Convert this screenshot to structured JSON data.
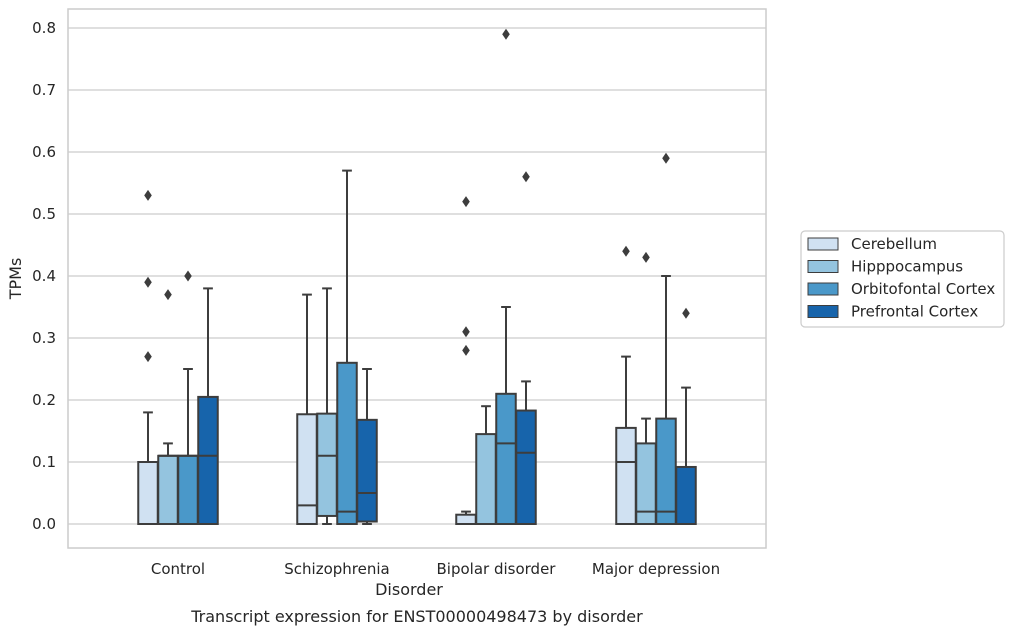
{
  "chart_data": {
    "type": "boxplot",
    "title": "",
    "caption": "Transcript expression for ENST00000498473 by disorder",
    "xlabel": "Disorder",
    "ylabel": "TPMs",
    "ylim": [
      -0.04,
      0.83
    ],
    "yticks": [
      0.0,
      0.1,
      0.2,
      0.3,
      0.4,
      0.5,
      0.6,
      0.7,
      0.8
    ],
    "ytick_labels": [
      "0.0",
      "0.1",
      "0.2",
      "0.3",
      "0.4",
      "0.5",
      "0.6",
      "0.7",
      "0.8"
    ],
    "grid": true,
    "legend_position": "right",
    "categories": [
      "Control",
      "Schizophrenia",
      "Bipolar disorder",
      "Major depression"
    ],
    "series": [
      {
        "name": "Cerebellum",
        "color": "#d0e1f2",
        "boxes": [
          {
            "whislo": 0.0,
            "q1": 0.0,
            "med": 0.0,
            "q3": 0.1,
            "whishi": 0.18,
            "fliers": [
              0.27,
              0.39,
              0.53
            ]
          },
          {
            "whislo": 0.0,
            "q1": 0.0,
            "med": 0.03,
            "q3": 0.177,
            "whishi": 0.37,
            "fliers": []
          },
          {
            "whislo": 0.0,
            "q1": 0.0,
            "med": 0.0,
            "q3": 0.015,
            "whishi": 0.02,
            "fliers": [
              0.28,
              0.31,
              0.52
            ]
          },
          {
            "whislo": 0.0,
            "q1": 0.0,
            "med": 0.1,
            "q3": 0.155,
            "whishi": 0.27,
            "fliers": [
              0.44
            ]
          }
        ]
      },
      {
        "name": "Hipppocampus",
        "color": "#94c4df",
        "boxes": [
          {
            "whislo": 0.0,
            "q1": 0.0,
            "med": 0.11,
            "q3": 0.11,
            "whishi": 0.13,
            "fliers": [
              0.37
            ]
          },
          {
            "whislo": 0.0,
            "q1": 0.013,
            "med": 0.11,
            "q3": 0.178,
            "whishi": 0.38,
            "fliers": []
          },
          {
            "whislo": 0.0,
            "q1": 0.0,
            "med": 0.0,
            "q3": 0.145,
            "whishi": 0.19,
            "fliers": []
          },
          {
            "whislo": 0.0,
            "q1": 0.0,
            "med": 0.02,
            "q3": 0.13,
            "whishi": 0.17,
            "fliers": [
              0.43
            ]
          }
        ]
      },
      {
        "name": "Orbitofontal Cortex",
        "color": "#4a98c9",
        "boxes": [
          {
            "whislo": 0.0,
            "q1": 0.0,
            "med": 0.11,
            "q3": 0.11,
            "whishi": 0.25,
            "fliers": [
              0.4
            ]
          },
          {
            "whislo": 0.0,
            "q1": 0.0,
            "med": 0.02,
            "q3": 0.26,
            "whishi": 0.57,
            "fliers": []
          },
          {
            "whislo": 0.0,
            "q1": 0.0,
            "med": 0.13,
            "q3": 0.21,
            "whishi": 0.35,
            "fliers": [
              0.79
            ]
          },
          {
            "whislo": 0.0,
            "q1": 0.0,
            "med": 0.02,
            "q3": 0.17,
            "whishi": 0.4,
            "fliers": [
              0.59
            ]
          }
        ]
      },
      {
        "name": "Prefrontal Cortex",
        "color": "#1764ab",
        "boxes": [
          {
            "whislo": 0.0,
            "q1": 0.0,
            "med": 0.11,
            "q3": 0.205,
            "whishi": 0.38,
            "fliers": []
          },
          {
            "whislo": 0.0,
            "q1": 0.004,
            "med": 0.05,
            "q3": 0.168,
            "whishi": 0.25,
            "fliers": []
          },
          {
            "whislo": 0.0,
            "q1": 0.0,
            "med": 0.115,
            "q3": 0.183,
            "whishi": 0.23,
            "fliers": [
              0.56
            ]
          },
          {
            "whislo": 0.0,
            "q1": 0.0,
            "med": 0.0,
            "q3": 0.092,
            "whishi": 0.22,
            "fliers": [
              0.34
            ]
          }
        ]
      }
    ]
  }
}
